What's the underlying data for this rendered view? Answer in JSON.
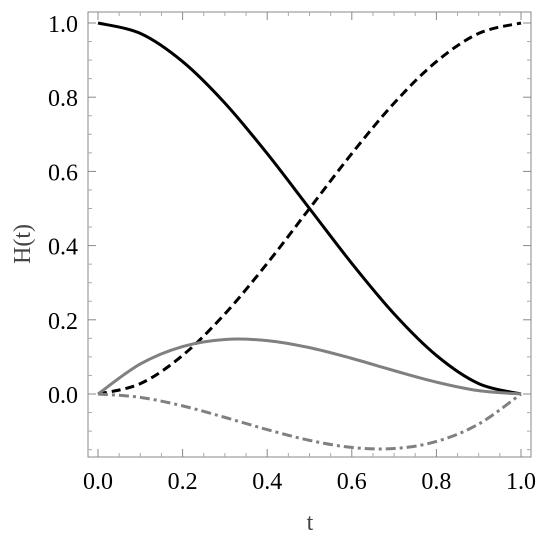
{
  "chart_data": {
    "type": "line",
    "xlabel": "t",
    "ylabel": "H(t)",
    "xlim": [
      0,
      1
    ],
    "ylim": [
      -0.15,
      1.0
    ],
    "grid": false,
    "x_ticks": [
      0.0,
      0.2,
      0.4,
      0.6,
      0.8,
      1.0
    ],
    "x_tick_labels": [
      "0.0",
      "0.2",
      "0.4",
      "0.6",
      "0.8",
      "1.0"
    ],
    "y_ticks": [
      0.0,
      0.2,
      0.4,
      0.6,
      0.8,
      1.0
    ],
    "y_tick_labels": [
      "0.0",
      "0.2",
      "0.4",
      "0.6",
      "0.8",
      "1.0"
    ],
    "x": [
      0.0,
      0.1,
      0.2,
      0.3,
      0.4,
      0.5,
      0.6,
      0.7,
      0.8,
      0.9,
      1.0
    ],
    "series": [
      {
        "color": "#000000",
        "style": "solid",
        "values": [
          1.0,
          0.972,
          0.896,
          0.784,
          0.648,
          0.5,
          0.352,
          0.216,
          0.104,
          0.028,
          0.0
        ]
      },
      {
        "color": "#000000",
        "style": "dashed",
        "values": [
          0.0,
          0.028,
          0.104,
          0.216,
          0.352,
          0.5,
          0.648,
          0.784,
          0.896,
          0.972,
          1.0
        ]
      },
      {
        "color": "#808080",
        "style": "solid",
        "values": [
          0.0,
          0.081,
          0.128,
          0.147,
          0.144,
          0.125,
          0.096,
          0.063,
          0.032,
          0.009,
          0.0
        ]
      },
      {
        "color": "#808080",
        "style": "dash-dot",
        "values": [
          0.0,
          -0.009,
          -0.032,
          -0.063,
          -0.096,
          -0.125,
          -0.144,
          -0.147,
          -0.128,
          -0.081,
          0.0
        ]
      }
    ]
  }
}
